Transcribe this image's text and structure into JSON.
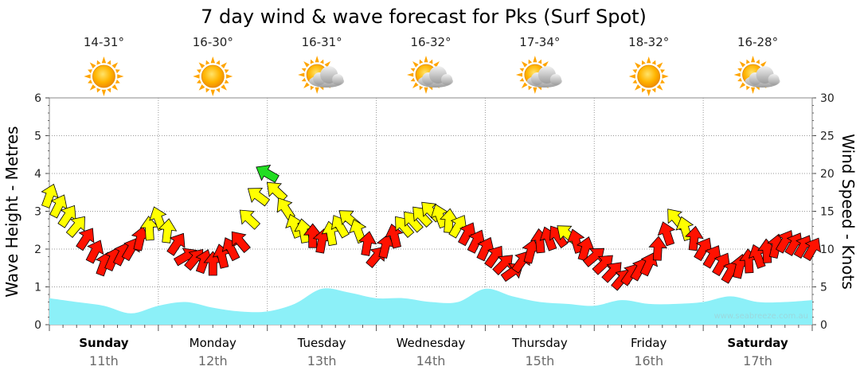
{
  "chart_data": {
    "type": "area",
    "title": "7 day wind & wave forecast for Pks (Surf Spot)",
    "ylabel_left": "Wave Height - Metres",
    "ylabel_right": "Wind Speed - Knots",
    "ylim_left": [
      0,
      6
    ],
    "ylim_right": [
      0,
      30
    ],
    "yticks_left": [
      "0",
      "1",
      "2",
      "3",
      "4",
      "5",
      "6"
    ],
    "yticks_right": [
      "0",
      "5",
      "10",
      "15",
      "20",
      "25",
      "30"
    ],
    "watermark": "www.seabreeze.com.au",
    "days": [
      {
        "name": "Sunday",
        "date": "11th",
        "temp": "14-31°",
        "weather": "sunny",
        "bold": true
      },
      {
        "name": "Monday",
        "date": "12th",
        "temp": "16-30°",
        "weather": "sunny",
        "bold": false
      },
      {
        "name": "Tuesday",
        "date": "13th",
        "temp": "16-31°",
        "weather": "partly-cloudy",
        "bold": false
      },
      {
        "name": "Wednesday",
        "date": "14th",
        "temp": "16-32°",
        "weather": "partly-cloudy",
        "bold": false
      },
      {
        "name": "Thursday",
        "date": "15th",
        "temp": "17-34°",
        "weather": "partly-cloudy",
        "bold": false
      },
      {
        "name": "Friday",
        "date": "16th",
        "temp": "18-32°",
        "weather": "sunny",
        "bold": false
      },
      {
        "name": "Saturday",
        "date": "17th",
        "temp": "16-28°",
        "weather": "partly-cloudy",
        "bold": true
      }
    ],
    "wave": {
      "name": "Wave Height (m)",
      "color": "#8cf0f8",
      "t": [
        0,
        0.25,
        0.5,
        0.75,
        1,
        1.25,
        1.5,
        1.75,
        2,
        2.25,
        2.5,
        2.75,
        3,
        3.25,
        3.5,
        3.75,
        4,
        4.25,
        4.5,
        4.75,
        5,
        5.25,
        5.5,
        5.75,
        6,
        6.25,
        6.5,
        6.75,
        7
      ],
      "values": [
        0.7,
        0.6,
        0.5,
        0.3,
        0.5,
        0.6,
        0.45,
        0.35,
        0.35,
        0.55,
        0.95,
        0.85,
        0.7,
        0.7,
        0.6,
        0.6,
        0.95,
        0.75,
        0.6,
        0.55,
        0.5,
        0.65,
        0.55,
        0.55,
        0.6,
        0.75,
        0.6,
        0.6,
        0.65
      ]
    },
    "wind": {
      "name": "Wind Speed (knots)",
      "t": [
        0,
        0.25,
        0.5,
        0.75,
        1,
        1.25,
        1.5,
        1.75,
        2,
        2.25,
        2.5,
        2.75,
        3,
        3.25,
        3.5,
        3.75,
        4,
        4.25,
        4.5,
        4.75,
        5,
        5.25,
        5.5,
        5.75,
        6,
        6.25,
        6.5,
        6.75,
        7
      ],
      "values": [
        17,
        13,
        8,
        10,
        14,
        9,
        8,
        11,
        20,
        13,
        11,
        14,
        9,
        13,
        15,
        13,
        10,
        7,
        11,
        12,
        9,
        6,
        8,
        14,
        10,
        7,
        9,
        11,
        10
      ],
      "directions": [
        290,
        310,
        290,
        300,
        250,
        330,
        270,
        230,
        210,
        250,
        280,
        220,
        310,
        230,
        225,
        300,
        295,
        325,
        265,
        220,
        320,
        310,
        295,
        230,
        300,
        300,
        250,
        300,
        300
      ]
    }
  }
}
